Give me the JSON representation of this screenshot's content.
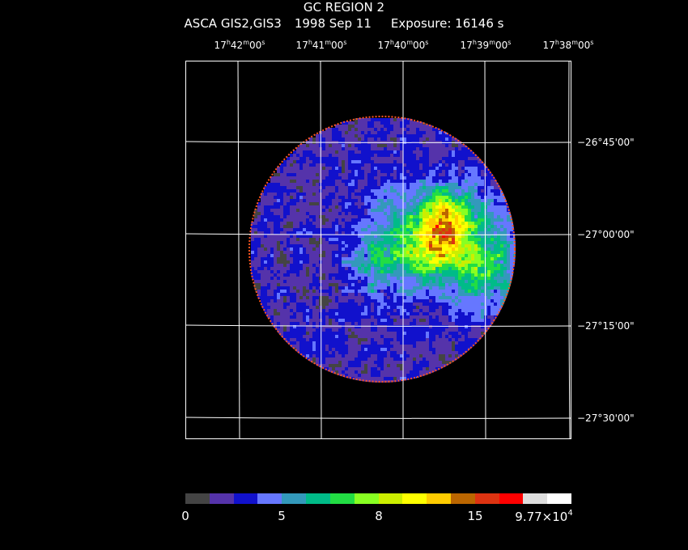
{
  "header": {
    "title": "GC REGION 2",
    "subtitle_instrument": "ASCA GIS2,GIS3",
    "subtitle_date": "1998 Sep 11",
    "subtitle_exposure": "Exposure: 16146 s"
  },
  "ra_axis": [
    {
      "h": "17",
      "m": "42",
      "s": "00"
    },
    {
      "h": "17",
      "m": "41",
      "s": "00"
    },
    {
      "h": "17",
      "m": "40",
      "s": "00"
    },
    {
      "h": "17",
      "m": "39",
      "s": "00"
    },
    {
      "h": "17",
      "m": "38",
      "s": "00"
    }
  ],
  "dec_axis": [
    "−26°45'00\"",
    "−27°00'00\"",
    "−27°15'00\"",
    "−27°30'00\""
  ],
  "colorbar": {
    "colors": [
      "#444444",
      "#5533aa",
      "#1111cc",
      "#6677ff",
      "#3399bb",
      "#00bb88",
      "#22dd44",
      "#88ff22",
      "#ccee00",
      "#ffff00",
      "#ffcc00",
      "#bb6600",
      "#dd3311",
      "#ff0000",
      "#dddddd",
      "#ffffff"
    ],
    "labels": {
      "l0": "0",
      "l1": "5",
      "l2": "8",
      "l3": "15",
      "l4_mantissa": "9.77×10",
      "l4_exp": "4"
    }
  },
  "image": {
    "description_colormap": [
      "#444444",
      "#5533aa",
      "#1111cc",
      "#6677ff",
      "#3399bb",
      "#00bb88",
      "#22dd44",
      "#88ff22",
      "#ccee00",
      "#ffff00",
      "#ffcc00",
      "#bb6600",
      "#dd3311",
      "#ff0000"
    ]
  }
}
